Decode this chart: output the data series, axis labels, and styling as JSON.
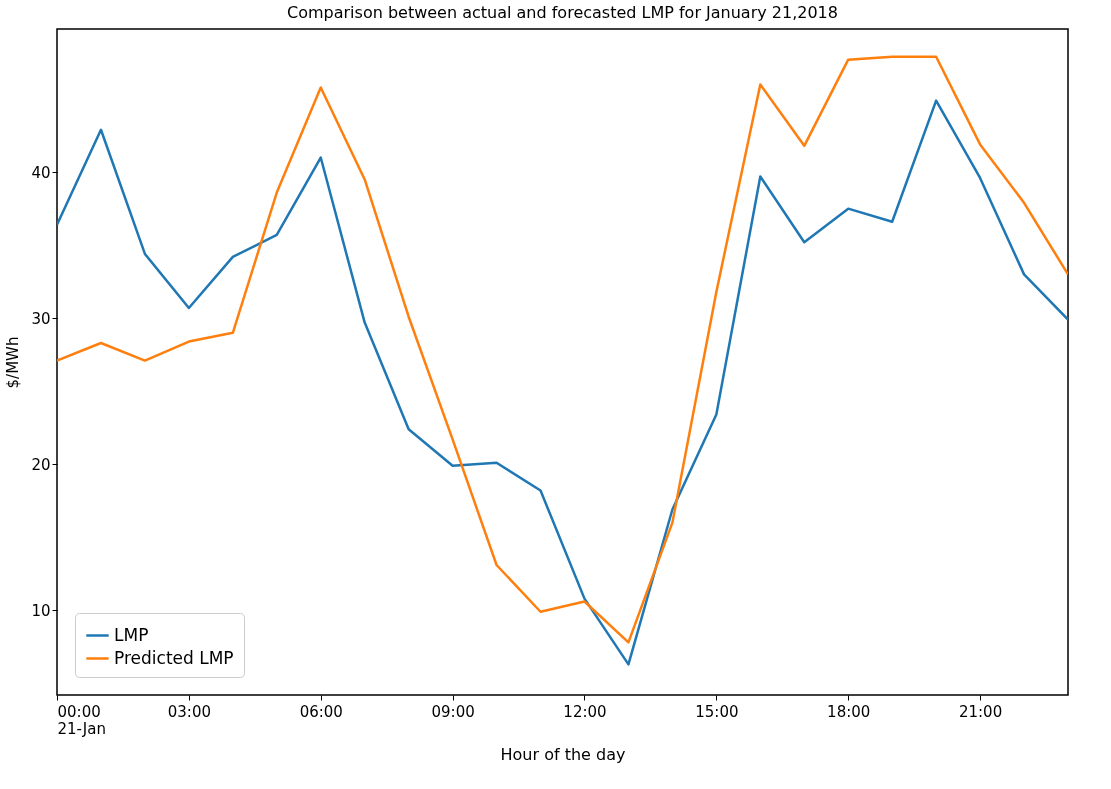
{
  "chart_data": {
    "type": "line",
    "title": "Comparison between actual and forecasted LMP for January 21,2018",
    "xlabel": "Hour of the day",
    "ylabel": "$/MWh",
    "x": [
      0,
      1,
      2,
      3,
      4,
      5,
      6,
      7,
      8,
      9,
      10,
      11,
      12,
      13,
      14,
      15,
      16,
      17,
      18,
      19,
      20,
      21,
      22,
      23
    ],
    "series": [
      {
        "name": "LMP",
        "color": "#1f77b4",
        "values": [
          36.4,
          42.9,
          34.4,
          30.7,
          34.2,
          35.7,
          41.0,
          29.7,
          22.4,
          19.9,
          20.1,
          18.2,
          10.8,
          6.3,
          16.9,
          23.4,
          39.7,
          35.2,
          37.5,
          36.6,
          44.9,
          39.6,
          33.0,
          29.9
        ]
      },
      {
        "name": "Predicted LMP",
        "color": "#ff7f0e",
        "values": [
          27.1,
          28.3,
          27.1,
          28.4,
          29.0,
          38.6,
          45.8,
          39.5,
          30.1,
          21.7,
          13.1,
          9.9,
          10.6,
          7.8,
          16.0,
          31.8,
          46.0,
          41.8,
          47.7,
          47.9,
          47.9,
          41.9,
          37.9,
          33.0
        ]
      }
    ],
    "xlim": [
      0,
      23
    ],
    "xticks": [
      {
        "value": 0,
        "label": "00:00\n21-Jan"
      },
      {
        "value": 3,
        "label": "03:00"
      },
      {
        "value": 6,
        "label": "06:00"
      },
      {
        "value": 9,
        "label": "09:00"
      },
      {
        "value": 12,
        "label": "12:00"
      },
      {
        "value": 15,
        "label": "15:00"
      },
      {
        "value": 18,
        "label": "18:00"
      },
      {
        "value": 21,
        "label": "21:00"
      }
    ],
    "ylim": [
      4.2,
      49.8
    ],
    "yticks": [
      10,
      20,
      30,
      40
    ],
    "grid": false,
    "legend": "bottom left",
    "line_style": "solid",
    "marker": "none"
  }
}
